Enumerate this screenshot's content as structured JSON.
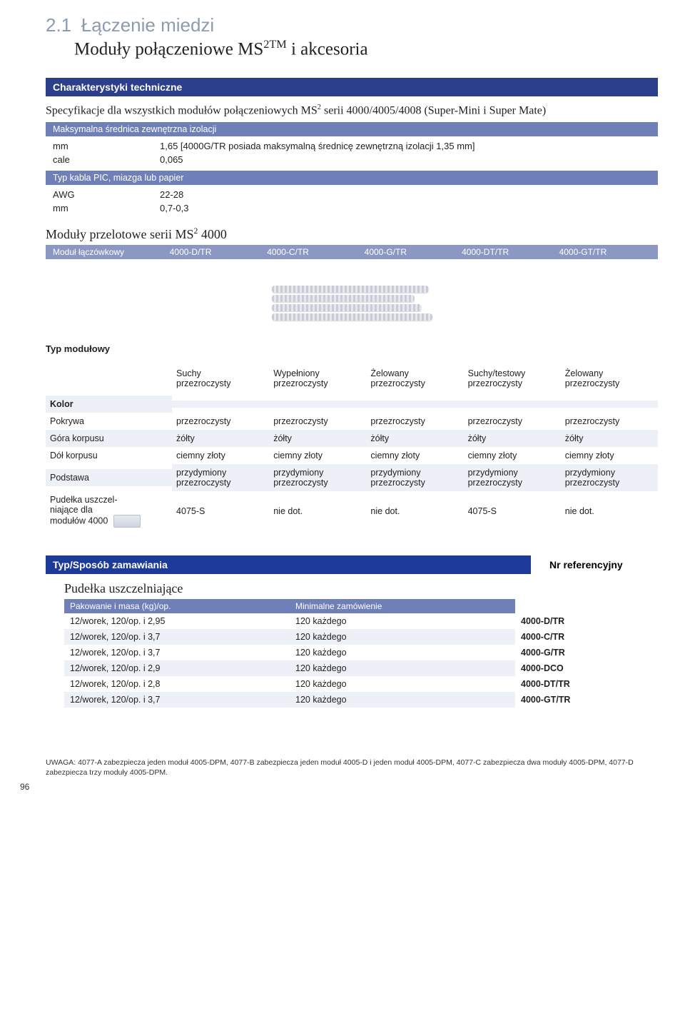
{
  "header": {
    "section_num": "2.1",
    "section_title": "Łączenie miedzi",
    "subtitle_pre": "Moduły połączeniowe MS",
    "subtitle_sup": "2TM",
    "subtitle_post": " i akcesoria"
  },
  "char_band": "Charakterystyki techniczne",
  "spec_pre": "Specyfikacje dla wszystkich modułów połączeniowych MS",
  "spec_sup": "2",
  "spec_post": " serii 4000/4005/4008 (Super-Mini i Super Mate)",
  "iso_band": "Maksymalna średnica zewnętrzna izolacji",
  "iso_rows": [
    {
      "k": "mm",
      "v": "1,65 [4000G/TR posiada maksymalną średnicę zewnętrzną izolacji 1,35 mm]"
    },
    {
      "k": "cale",
      "v": "0,065"
    }
  ],
  "cable_band": "Typ kabla PIC, miazga lub papier",
  "cable_rows": [
    {
      "k": "AWG",
      "v": "22-28"
    },
    {
      "k": "mm",
      "v": "0,7-0,3"
    }
  ],
  "mod_title_pre": "Moduły przelotowe serii MS",
  "mod_title_sup": "2",
  "mod_title_post": " 4000",
  "mod_head": [
    "Moduł łączówkowy",
    "4000-D/TR",
    "4000-C/TR",
    "4000-G/TR",
    "4000-DT/TR",
    "4000-GT/TR"
  ],
  "typ_mod": "Typ modułowy",
  "type_cols": [
    {
      "l1": "Suchy",
      "l2": "przezroczysty"
    },
    {
      "l1": "Wypełniony",
      "l2": "przezroczysty"
    },
    {
      "l1": "Żelowany",
      "l2": "przezroczysty"
    },
    {
      "l1": "Suchy/testowy",
      "l2": "przezroczysty"
    },
    {
      "l1": "Żelowany",
      "l2": "przezroczysty"
    }
  ],
  "kolor_label": "Kolor",
  "rows": [
    {
      "label": "Pokrywa",
      "cells": [
        "przezroczysty",
        "przezroczysty",
        "przezroczysty",
        "przezroczysty",
        "przezroczysty"
      ],
      "alt": false
    },
    {
      "label": "Góra korpusu",
      "cells": [
        "żółty",
        "żółty",
        "żółty",
        "żółty",
        "żółty"
      ],
      "alt": true
    },
    {
      "label": "Dół korpusu",
      "cells": [
        "ciemny złoty",
        "ciemny złoty",
        "ciemny złoty",
        "ciemny złoty",
        "ciemny złoty"
      ],
      "alt": false
    },
    {
      "label": "Podstawa",
      "cells": [
        "przydymiony przezroczysty",
        "przydymiony przezroczysty",
        "przydymiony przezroczysty",
        "przydymiony przezroczysty",
        "przydymiony przezroczysty"
      ],
      "alt": true
    },
    {
      "label": "Pudełka uszczelniające dla modułów 4000",
      "cells": [
        "4075-S",
        "nie dot.",
        "nie dot.",
        "4075-S",
        "nie dot."
      ],
      "alt": false,
      "icon": true
    }
  ],
  "order": {
    "band": "Typ/Sposób zamawiania",
    "ref": "Nr referencyjny",
    "title": "Pudełka uszczelniające",
    "sub1": "Pakowanie i masa (kg)/op.",
    "sub2": "Minimalne zamówienie",
    "rows": [
      {
        "p": "12/worek, 120/op. i 2,95",
        "m": "120 każdego",
        "r": "4000-D/TR",
        "alt": false
      },
      {
        "p": "12/worek, 120/op. i 3,7",
        "m": "120 każdego",
        "r": "4000-C/TR",
        "alt": true
      },
      {
        "p": "12/worek, 120/op. i 3,7",
        "m": "120 każdego",
        "r": "4000-G/TR",
        "alt": false
      },
      {
        "p": "12/worek, 120/op. i 2,9",
        "m": "120 każdego",
        "r": "4000-DCO",
        "alt": true
      },
      {
        "p": "12/worek, 120/op. i 2,8",
        "m": "120 każdego",
        "r": "4000-DT/TR",
        "alt": false
      },
      {
        "p": "12/worek, 120/op. i 3,7",
        "m": "120 każdego",
        "r": "4000-GT/TR",
        "alt": true
      }
    ]
  },
  "footnote": "UWAGA: 4077-A zabezpiecza jeden moduł 4005-DPM, 4077-B zabezpiecza jeden moduł 4005-D i jeden moduł 4005-DPM, 4077-C zabezpiecza dwa moduły 4005-DPM, 4077-D zabezpiecza trzy moduły 4005-DPM.",
  "page": "96"
}
